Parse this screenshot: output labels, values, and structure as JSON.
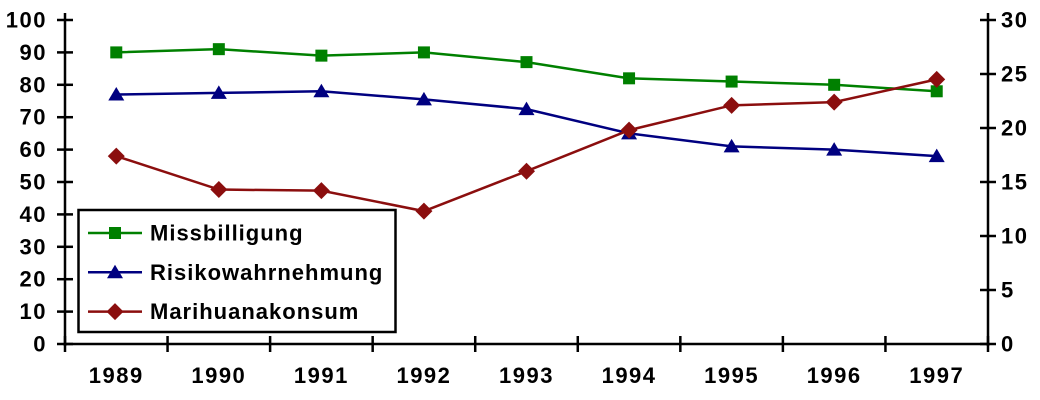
{
  "chart_data": {
    "type": "line",
    "title": "",
    "xlabel": "",
    "ylabel_left": "",
    "ylabel_right": "",
    "grid": false,
    "background_color": "#ffffff",
    "axis_color": "#000000",
    "text_color": "#000000",
    "categories": [
      "1989",
      "1990",
      "1991",
      "1992",
      "1993",
      "1994",
      "1995",
      "1996",
      "1997"
    ],
    "left_axis": {
      "min": 0,
      "max": 100,
      "tick_step": 10,
      "ticks": [
        0,
        10,
        20,
        30,
        40,
        50,
        60,
        70,
        80,
        90,
        100
      ],
      "tick_labels": [
        "0",
        "10",
        "20",
        "30",
        "40",
        "50",
        "60",
        "70",
        "80",
        "90",
        "100"
      ]
    },
    "right_axis": {
      "min": 0,
      "max": 30,
      "tick_step": 5,
      "ticks": [
        0,
        5,
        10,
        15,
        20,
        25,
        30
      ],
      "tick_labels": [
        "0",
        "5",
        "10",
        "15",
        "20",
        "25",
        "30"
      ]
    },
    "series": [
      {
        "name": "Missbilligung",
        "axis": "left",
        "color": "#008000",
        "marker": "square",
        "values": [
          90,
          91,
          89,
          90,
          87,
          82,
          81,
          80,
          78
        ]
      },
      {
        "name": "Risikowahrnehmung",
        "axis": "left",
        "color": "#000080",
        "marker": "triangle",
        "values": [
          77,
          77.5,
          78,
          75.5,
          72.5,
          65,
          61,
          60,
          58
        ]
      },
      {
        "name": "Marihuanakonsum",
        "axis": "right",
        "color": "#8b0e0e",
        "marker": "diamond",
        "values": [
          17.4,
          14.3,
          14.2,
          12.3,
          16,
          19.8,
          22.1,
          22.4,
          24.5
        ]
      }
    ],
    "legend": {
      "position": "inside-bottom-left",
      "border": true,
      "entries": [
        "Missbilligung",
        "Risikowahrnehmung",
        "Marihuanakonsum"
      ]
    }
  }
}
